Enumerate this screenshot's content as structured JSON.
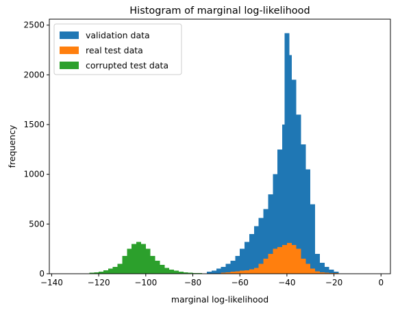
{
  "chart_data": {
    "type": "bar",
    "title": "Histogram of marginal log-likelihood",
    "xlabel": "marginal log-likelihood",
    "ylabel": "frequency",
    "xlim": [
      -141,
      4
    ],
    "ylim": [
      0,
      2560
    ],
    "x_ticks": [
      -140,
      -120,
      -100,
      -80,
      -60,
      -40,
      -20,
      0
    ],
    "y_ticks": [
      0,
      500,
      1000,
      1500,
      2000,
      2500
    ],
    "legend_position": "upper left",
    "series": [
      {
        "name": "validation data",
        "color": "#1f77b4",
        "bin_width": 2,
        "bins": [
          [
            -74,
            20
          ],
          [
            -72,
            30
          ],
          [
            -70,
            50
          ],
          [
            -68,
            70
          ],
          [
            -66,
            100
          ],
          [
            -64,
            130
          ],
          [
            -62,
            180
          ],
          [
            -60,
            250
          ],
          [
            -58,
            320
          ],
          [
            -56,
            400
          ],
          [
            -54,
            480
          ],
          [
            -52,
            560
          ],
          [
            -50,
            650
          ],
          [
            -48,
            800
          ],
          [
            -46,
            1000
          ],
          [
            -44,
            1250
          ],
          [
            -42,
            1500
          ],
          [
            -41,
            2420
          ],
          [
            -40,
            2200
          ],
          [
            -38,
            1950
          ],
          [
            -36,
            1600
          ],
          [
            -34,
            1300
          ],
          [
            -32,
            1050
          ],
          [
            -30,
            700
          ],
          [
            -28,
            200
          ],
          [
            -26,
            110
          ],
          [
            -24,
            70
          ],
          [
            -22,
            40
          ],
          [
            -20,
            20
          ]
        ]
      },
      {
        "name": "real test data",
        "color": "#ff7f0e",
        "bin_width": 2,
        "bins": [
          [
            -68,
            10
          ],
          [
            -66,
            15
          ],
          [
            -64,
            20
          ],
          [
            -62,
            25
          ],
          [
            -60,
            30
          ],
          [
            -58,
            35
          ],
          [
            -56,
            45
          ],
          [
            -54,
            60
          ],
          [
            -52,
            100
          ],
          [
            -50,
            150
          ],
          [
            -48,
            200
          ],
          [
            -46,
            250
          ],
          [
            -44,
            270
          ],
          [
            -42,
            290
          ],
          [
            -40,
            310
          ],
          [
            -38,
            290
          ],
          [
            -36,
            250
          ],
          [
            -34,
            150
          ],
          [
            -32,
            100
          ],
          [
            -30,
            50
          ],
          [
            -28,
            25
          ],
          [
            -26,
            15
          ],
          [
            -24,
            10
          ],
          [
            -22,
            8
          ],
          [
            -20,
            6
          ],
          [
            -18,
            4
          ],
          [
            -16,
            2
          ],
          [
            -14,
            1
          ]
        ]
      },
      {
        "name": "corrupted test data",
        "color": "#2ca02c",
        "bin_width": 2,
        "bins": [
          [
            -126,
            5
          ],
          [
            -124,
            10
          ],
          [
            -122,
            15
          ],
          [
            -120,
            20
          ],
          [
            -118,
            35
          ],
          [
            -116,
            50
          ],
          [
            -114,
            70
          ],
          [
            -112,
            100
          ],
          [
            -110,
            180
          ],
          [
            -108,
            250
          ],
          [
            -106,
            300
          ],
          [
            -104,
            320
          ],
          [
            -102,
            300
          ],
          [
            -100,
            250
          ],
          [
            -98,
            180
          ],
          [
            -96,
            130
          ],
          [
            -94,
            90
          ],
          [
            -92,
            60
          ],
          [
            -90,
            40
          ],
          [
            -88,
            30
          ],
          [
            -86,
            20
          ],
          [
            -84,
            15
          ],
          [
            -82,
            10
          ],
          [
            -80,
            8
          ],
          [
            -78,
            6
          ],
          [
            -76,
            4
          ],
          [
            -74,
            2
          ]
        ]
      }
    ]
  }
}
